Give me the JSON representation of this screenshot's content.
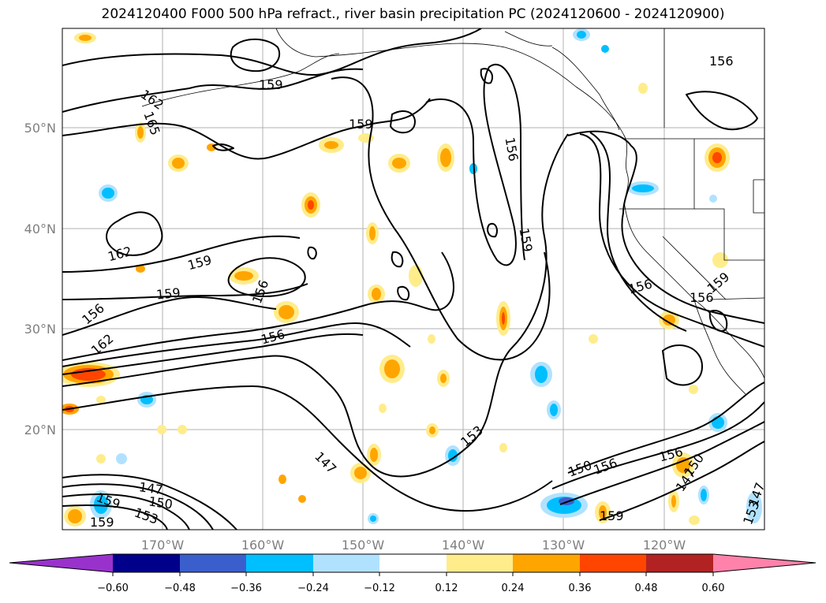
{
  "title": "2024120400 F000 500 hPa refract., river basin precipitation PC (2024120600 - 2024120900)",
  "latitude_labels": [
    "50°N",
    "40°N",
    "30°N",
    "20°N"
  ],
  "longitude_labels": [
    "170°W",
    "160°W",
    "150°W",
    "140°W",
    "130°W",
    "120°W"
  ],
  "colorbar": {
    "tick_labels": [
      "−0.60",
      "−0.48",
      "−0.36",
      "−0.24",
      "−0.12",
      "0.12",
      "0.24",
      "0.36",
      "0.48",
      "0.60"
    ],
    "colors": [
      "#9932cc",
      "#00008b",
      "#3a5fcd",
      "#00bfff",
      "#b0e2ff",
      "#ffffff",
      "#ffec8b",
      "#ffa500",
      "#ff4500",
      "#b22222",
      "#ff82ab"
    ]
  },
  "contour_labels": [
    {
      "text": "162"
    },
    {
      "text": "165"
    },
    {
      "text": "159"
    },
    {
      "text": "159"
    },
    {
      "text": "156"
    },
    {
      "text": "156"
    },
    {
      "text": "159"
    },
    {
      "text": "162"
    },
    {
      "text": "159"
    },
    {
      "text": "159"
    },
    {
      "text": "156"
    },
    {
      "text": "156"
    },
    {
      "text": "162"
    },
    {
      "text": "156"
    },
    {
      "text": "156"
    },
    {
      "text": "159"
    },
    {
      "text": "156"
    },
    {
      "text": "153"
    },
    {
      "text": "147"
    },
    {
      "text": "147"
    },
    {
      "text": "150"
    },
    {
      "text": "153"
    },
    {
      "text": "159"
    },
    {
      "text": "159"
    },
    {
      "text": "150"
    },
    {
      "text": "156"
    },
    {
      "text": "156"
    },
    {
      "text": "147"
    },
    {
      "text": "150"
    },
    {
      "text": "159"
    },
    {
      "text": "147"
    },
    {
      "text": "153"
    }
  ]
}
